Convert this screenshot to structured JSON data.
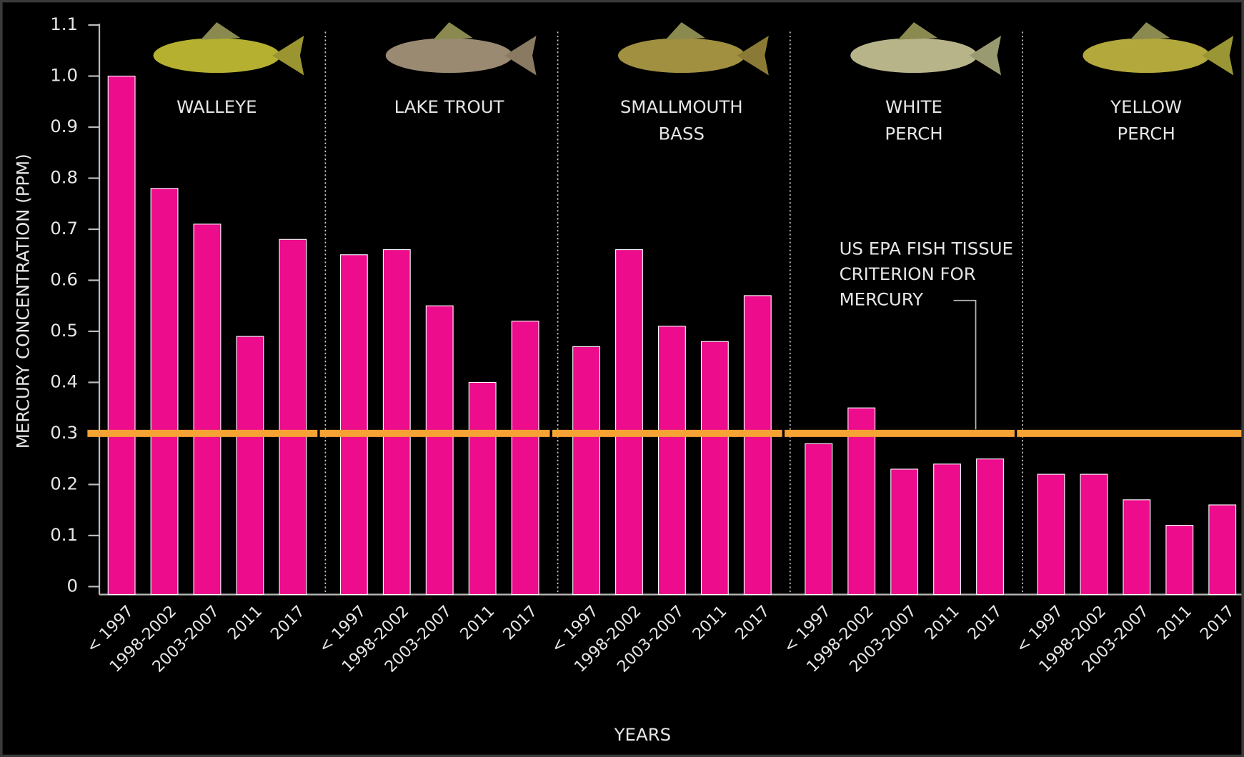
{
  "chart_data": {
    "type": "bar",
    "y_label": "MERCURY CONCENTRATION (PPM)",
    "x_label": "YEARS",
    "categories": [
      "< 1997",
      "1998-2002",
      "2003-2007",
      "2011",
      "2017"
    ],
    "color": "#ec0c8c",
    "groups": [
      {
        "label": [
          "WALLEYE"
        ],
        "values": [
          1.0,
          0.78,
          0.71,
          0.49,
          0.68
        ]
      },
      {
        "label": [
          "LAKE TROUT"
        ],
        "values": [
          0.65,
          0.66,
          0.55,
          0.4,
          0.52
        ]
      },
      {
        "label": [
          "SMALLMOUTH",
          "BASS"
        ],
        "values": [
          0.47,
          0.66,
          0.51,
          0.48,
          0.57
        ]
      },
      {
        "label": [
          "WHITE",
          "PERCH"
        ],
        "values": [
          0.28,
          0.35,
          0.23,
          0.24,
          0.25
        ]
      },
      {
        "label": [
          "YELLOW",
          "PERCH"
        ],
        "values": [
          0.22,
          0.22,
          0.17,
          0.12,
          0.16
        ]
      }
    ],
    "reference_line": {
      "value": 0.3,
      "color": "#f7a234",
      "label": [
        "US EPA FISH TISSUE",
        "CRITERION FOR",
        "MERCURY"
      ]
    },
    "ylim": [
      0,
      1.1
    ],
    "yticks": [
      0,
      0.1,
      0.2,
      0.3,
      0.4,
      0.5,
      0.6,
      0.7,
      0.8,
      0.9,
      {
        "value": 1,
        "label": "1.0"
      },
      1.1
    ]
  }
}
